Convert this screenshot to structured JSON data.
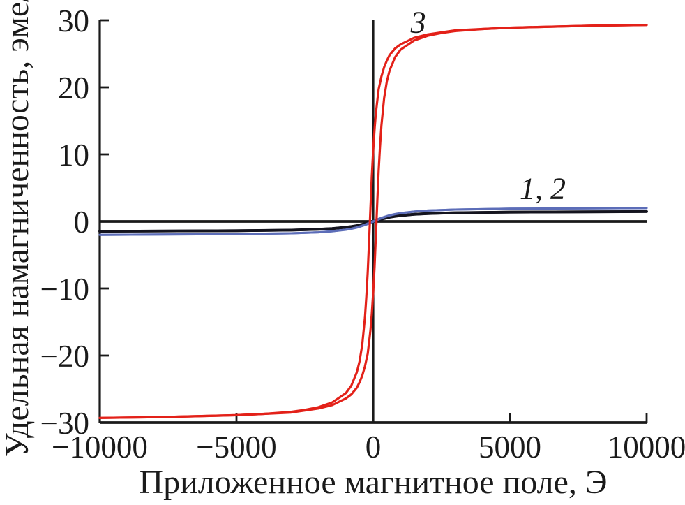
{
  "figure": {
    "background": "#ffffff"
  },
  "chart_data": {
    "type": "line",
    "title": "",
    "xlabel": "Приложенное магнитное поле, Э",
    "ylabel": "Удельная намагниченность, эме/г",
    "xlim": [
      -10000,
      10000
    ],
    "ylim": [
      -30,
      30
    ],
    "grid": false,
    "legend_position": "none",
    "axis_color": "#1a1a1a",
    "x_ticks": [
      {
        "value": -10000,
        "label": "−10000"
      },
      {
        "value": -5000,
        "label": "−5000"
      },
      {
        "value": 0,
        "label": "0"
      },
      {
        "value": 5000,
        "label": "5000"
      },
      {
        "value": 10000,
        "label": "10000"
      }
    ],
    "y_ticks": [
      {
        "value": 30,
        "label": "30"
      },
      {
        "value": 20,
        "label": "20"
      },
      {
        "value": 10,
        "label": "10"
      },
      {
        "value": 0,
        "label": "0"
      },
      {
        "value": -10,
        "label": "−10"
      },
      {
        "value": -20,
        "label": "−20"
      },
      {
        "value": -30,
        "label": "−30"
      }
    ],
    "annotations": [
      {
        "text": "3",
        "x": 1650,
        "y": 28.2
      },
      {
        "text": "1, 2",
        "x": 6200,
        "y": 3.4
      }
    ],
    "series": [
      {
        "name": "1",
        "description": "curve 1, black, low saturation magnetization ~1.5 emu/g",
        "color": "#14141e",
        "width": 3.8,
        "branches": [
          [
            [
              -10000,
              -1.47
            ],
            [
              -5000,
              -1.39
            ],
            [
              -3000,
              -1.29
            ],
            [
              -2000,
              -1.17
            ],
            [
              -1500,
              -1.06
            ],
            [
              -1000,
              -0.86
            ],
            [
              -800,
              -0.76
            ],
            [
              -600,
              -0.62
            ],
            [
              -400,
              -0.43
            ],
            [
              -200,
              -0.21
            ],
            [
              -100,
              -0.09
            ],
            [
              0,
              0.03
            ],
            [
              100,
              0.15
            ],
            [
              200,
              0.27
            ],
            [
              400,
              0.48
            ],
            [
              600,
              0.66
            ],
            [
              800,
              0.79
            ],
            [
              1000,
              0.89
            ],
            [
              1500,
              1.07
            ],
            [
              2000,
              1.18
            ],
            [
              3000,
              1.3
            ],
            [
              5000,
              1.39
            ],
            [
              10000,
              1.47
            ]
          ],
          [
            [
              -10000,
              -1.47
            ],
            [
              -5000,
              -1.39
            ],
            [
              -3000,
              -1.3
            ],
            [
              -2000,
              -1.18
            ],
            [
              -1500,
              -1.07
            ],
            [
              -1000,
              -0.89
            ],
            [
              -800,
              -0.79
            ],
            [
              -600,
              -0.66
            ],
            [
              -400,
              -0.48
            ],
            [
              -200,
              -0.27
            ],
            [
              -100,
              -0.15
            ],
            [
              0,
              -0.03
            ],
            [
              100,
              0.09
            ],
            [
              200,
              0.21
            ],
            [
              400,
              0.43
            ],
            [
              600,
              0.62
            ],
            [
              800,
              0.76
            ],
            [
              1000,
              0.86
            ],
            [
              1500,
              1.06
            ],
            [
              2000,
              1.17
            ],
            [
              3000,
              1.29
            ],
            [
              5000,
              1.39
            ],
            [
              10000,
              1.47
            ]
          ]
        ]
      },
      {
        "name": "2",
        "description": "curve 2, blue, low saturation magnetization ~2.0 emu/g",
        "color": "#5c6db8",
        "width": 3.0,
        "branches": [
          [
            [
              -10000,
              -2.0
            ],
            [
              -5000,
              -1.9
            ],
            [
              -3000,
              -1.77
            ],
            [
              -2000,
              -1.62
            ],
            [
              -1500,
              -1.47
            ],
            [
              -1000,
              -1.22
            ],
            [
              -800,
              -1.07
            ],
            [
              -600,
              -0.87
            ],
            [
              -400,
              -0.62
            ],
            [
              -200,
              -0.3
            ],
            [
              -100,
              -0.13
            ],
            [
              0,
              0.04
            ],
            [
              100,
              0.21
            ],
            [
              200,
              0.39
            ],
            [
              400,
              0.68
            ],
            [
              600,
              0.93
            ],
            [
              800,
              1.11
            ],
            [
              1000,
              1.25
            ],
            [
              1500,
              1.47
            ],
            [
              2000,
              1.62
            ],
            [
              3000,
              1.77
            ],
            [
              5000,
              1.9
            ],
            [
              10000,
              2.0
            ]
          ],
          [
            [
              -10000,
              -2.0
            ],
            [
              -5000,
              -1.9
            ],
            [
              -3000,
              -1.77
            ],
            [
              -2000,
              -1.62
            ],
            [
              -1500,
              -1.47
            ],
            [
              -1000,
              -1.25
            ],
            [
              -800,
              -1.11
            ],
            [
              -600,
              -0.93
            ],
            [
              -400,
              -0.68
            ],
            [
              -200,
              -0.39
            ],
            [
              -100,
              -0.21
            ],
            [
              0,
              -0.04
            ],
            [
              100,
              0.13
            ],
            [
              200,
              0.3
            ],
            [
              400,
              0.62
            ],
            [
              600,
              0.87
            ],
            [
              800,
              1.07
            ],
            [
              1000,
              1.22
            ],
            [
              1500,
              1.47
            ],
            [
              2000,
              1.62
            ],
            [
              3000,
              1.77
            ],
            [
              5000,
              1.9
            ],
            [
              10000,
              2.0
            ]
          ]
        ]
      },
      {
        "name": "3",
        "description": "curve 3, red, high saturation magnetization ~29.3 emu/g with narrow hysteresis loop",
        "color": "#e32119",
        "width": 3.2,
        "branches": [
          [
            [
              -10000,
              -29.3
            ],
            [
              -8000,
              -29.2
            ],
            [
              -6000,
              -29.0
            ],
            [
              -5000,
              -28.9
            ],
            [
              -4000,
              -28.7
            ],
            [
              -3000,
              -28.4
            ],
            [
              -2500,
              -28.1
            ],
            [
              -2000,
              -27.7
            ],
            [
              -1500,
              -27.0
            ],
            [
              -1000,
              -25.6
            ],
            [
              -800,
              -24.5
            ],
            [
              -600,
              -22.5
            ],
            [
              -500,
              -20.9
            ],
            [
              -400,
              -18.4
            ],
            [
              -300,
              -14.3
            ],
            [
              -250,
              -11.2
            ],
            [
              -200,
              -7.5
            ],
            [
              -150,
              -3.0
            ],
            [
              -120,
              0.0
            ],
            [
              -100,
              2.0
            ],
            [
              -50,
              6.7
            ],
            [
              0,
              10.6
            ],
            [
              50,
              13.8
            ],
            [
              100,
              16.2
            ],
            [
              150,
              18.0
            ],
            [
              200,
              19.7
            ],
            [
              300,
              21.6
            ],
            [
              400,
              23.0
            ],
            [
              500,
              24.0
            ],
            [
              600,
              24.8
            ],
            [
              800,
              25.8
            ],
            [
              1000,
              26.4
            ],
            [
              1500,
              27.4
            ],
            [
              2000,
              27.9
            ],
            [
              2500,
              28.2
            ],
            [
              3000,
              28.5
            ],
            [
              4000,
              28.7
            ],
            [
              5000,
              28.9
            ],
            [
              6000,
              29.0
            ],
            [
              8000,
              29.2
            ],
            [
              10000,
              29.3
            ]
          ],
          [
            [
              -10000,
              -29.3
            ],
            [
              -8000,
              -29.2
            ],
            [
              -6000,
              -29.0
            ],
            [
              -5000,
              -28.9
            ],
            [
              -4000,
              -28.7
            ],
            [
              -3000,
              -28.5
            ],
            [
              -2500,
              -28.2
            ],
            [
              -2000,
              -27.9
            ],
            [
              -1500,
              -27.4
            ],
            [
              -1000,
              -26.4
            ],
            [
              -800,
              -25.8
            ],
            [
              -600,
              -24.8
            ],
            [
              -500,
              -24.0
            ],
            [
              -400,
              -23.0
            ],
            [
              -300,
              -21.6
            ],
            [
              -200,
              -19.7
            ],
            [
              -150,
              -18.0
            ],
            [
              -100,
              -16.2
            ],
            [
              -50,
              -13.8
            ],
            [
              0,
              -10.6
            ],
            [
              50,
              -6.7
            ],
            [
              100,
              -2.0
            ],
            [
              120,
              0.0
            ],
            [
              150,
              3.0
            ],
            [
              200,
              7.5
            ],
            [
              250,
              11.2
            ],
            [
              300,
              14.3
            ],
            [
              400,
              18.4
            ],
            [
              500,
              20.9
            ],
            [
              600,
              22.5
            ],
            [
              800,
              24.5
            ],
            [
              1000,
              25.6
            ],
            [
              1500,
              27.0
            ],
            [
              2000,
              27.7
            ],
            [
              2500,
              28.1
            ],
            [
              3000,
              28.4
            ],
            [
              4000,
              28.7
            ],
            [
              5000,
              28.9
            ],
            [
              6000,
              29.0
            ],
            [
              8000,
              29.2
            ],
            [
              10000,
              29.3
            ]
          ]
        ]
      }
    ]
  }
}
